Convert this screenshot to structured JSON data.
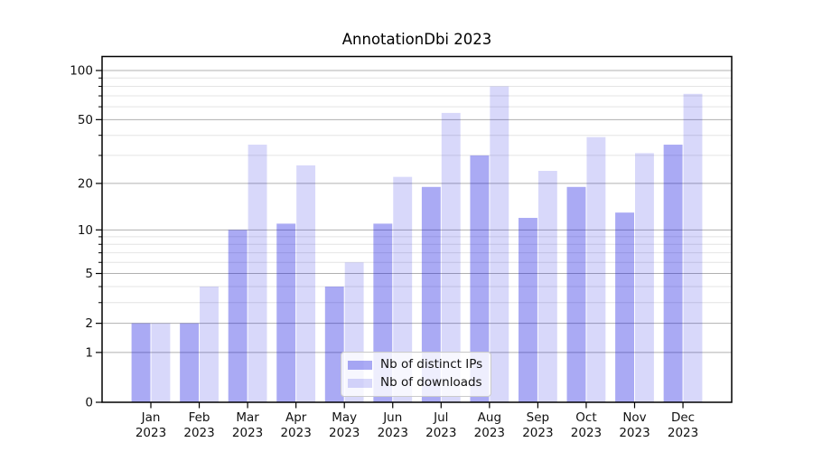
{
  "title": "AnnotationDbi 2023",
  "colors": {
    "ips": "rgba(12,12,224,0.35)",
    "downloads": "rgba(12,12,224,0.16)",
    "grid_major": "#b0b0b0",
    "grid_minor": "#e4e4e4",
    "axis": "#000000",
    "text": "#111111"
  },
  "chart_data": {
    "type": "bar",
    "title": "AnnotationDbi 2023",
    "months": [
      "Jan",
      "Feb",
      "Mar",
      "Apr",
      "May",
      "Jun",
      "Jul",
      "Aug",
      "Sep",
      "Oct",
      "Nov",
      "Dec"
    ],
    "year": "2023",
    "series": [
      {
        "name": "Nb of distinct IPs",
        "values": [
          2,
          2,
          10,
          11,
          4,
          11,
          19,
          30,
          12,
          19,
          13,
          35
        ]
      },
      {
        "name": "Nb of downloads",
        "values": [
          2,
          4,
          35,
          26,
          6,
          22,
          55,
          80,
          24,
          39,
          31,
          72
        ]
      }
    ],
    "yscale": "log1p",
    "yticks_major": [
      0,
      1,
      2,
      5,
      10,
      20,
      50,
      100
    ],
    "yticks_minor": [
      3,
      4,
      6,
      7,
      8,
      9,
      30,
      40,
      60,
      70,
      80,
      90
    ],
    "ylim": [
      0,
      122
    ],
    "xlabel": "",
    "ylabel": "",
    "grid": true,
    "legend_position": "lower center"
  }
}
